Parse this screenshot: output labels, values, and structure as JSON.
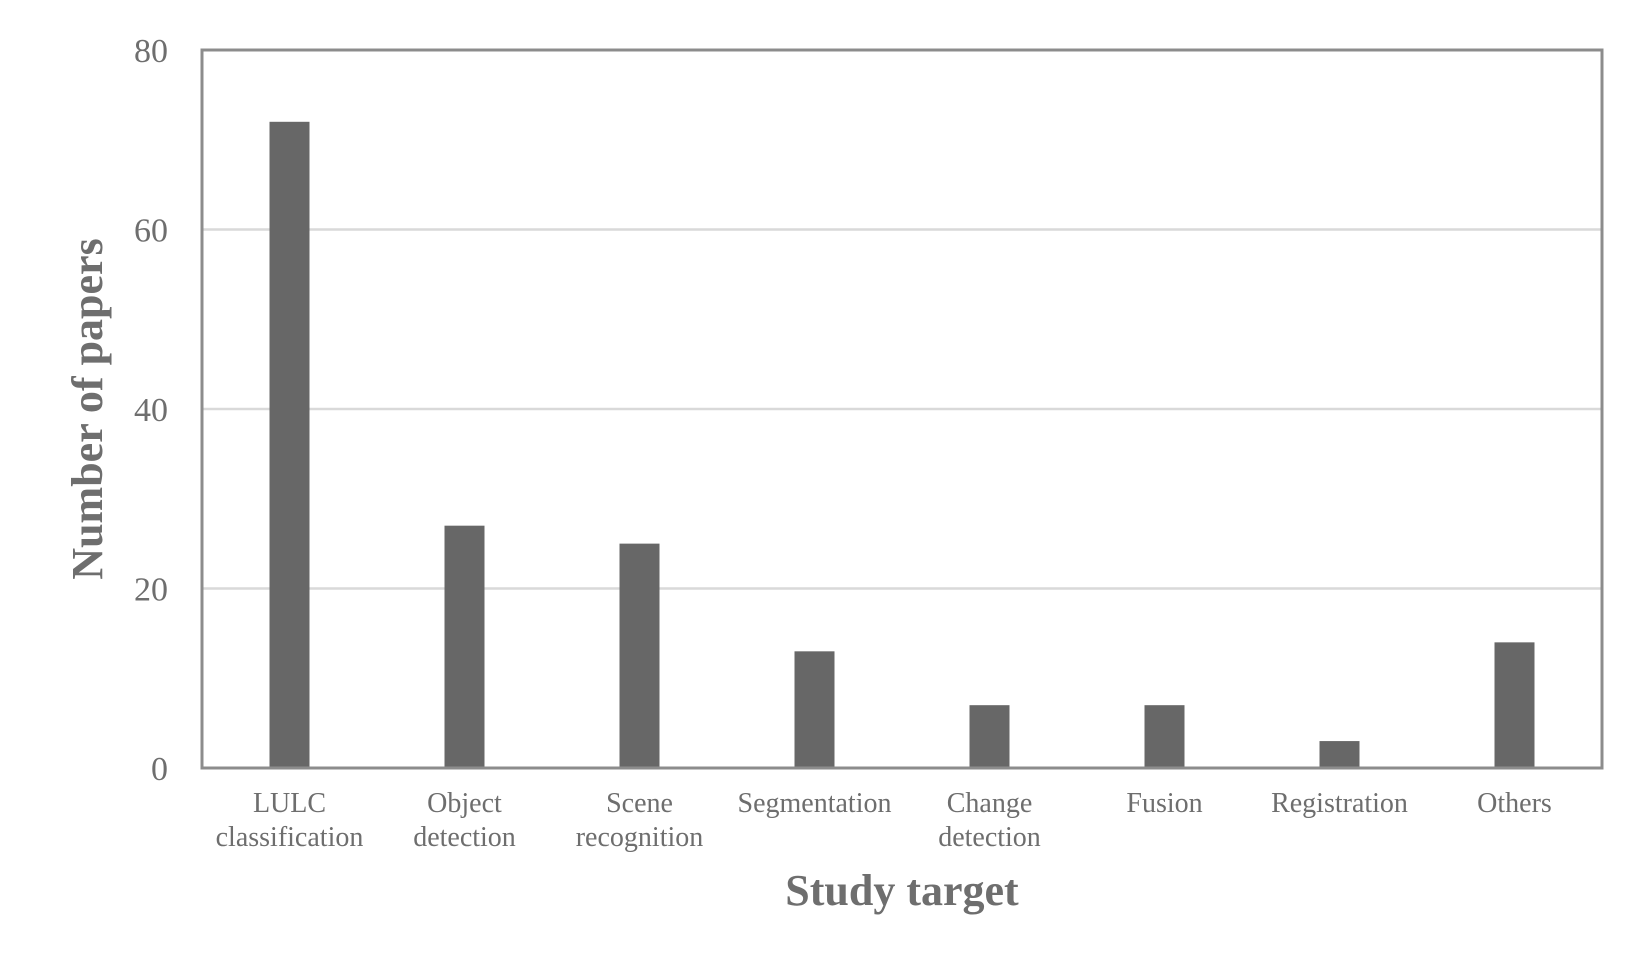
{
  "chart_data": {
    "type": "bar",
    "categories": [
      [
        "LULC",
        "classification"
      ],
      [
        "Object",
        "detection"
      ],
      [
        "Scene",
        "recognition"
      ],
      [
        "Segmentation"
      ],
      [
        "Change",
        "detection"
      ],
      [
        "Fusion"
      ],
      [
        "Registration"
      ],
      [
        "Others"
      ]
    ],
    "values": [
      72,
      27,
      25,
      13,
      7,
      7,
      3,
      14
    ],
    "xlabel": "Study target",
    "ylabel": "Number of papers",
    "ylim": [
      0,
      80
    ],
    "yticks": [
      0,
      20,
      40,
      60,
      80
    ],
    "grid": true,
    "colors": {
      "bar": "#676767",
      "grid": "#d9d9d9",
      "frame": "#8c8c8c",
      "text": "#6e6e6e"
    }
  }
}
